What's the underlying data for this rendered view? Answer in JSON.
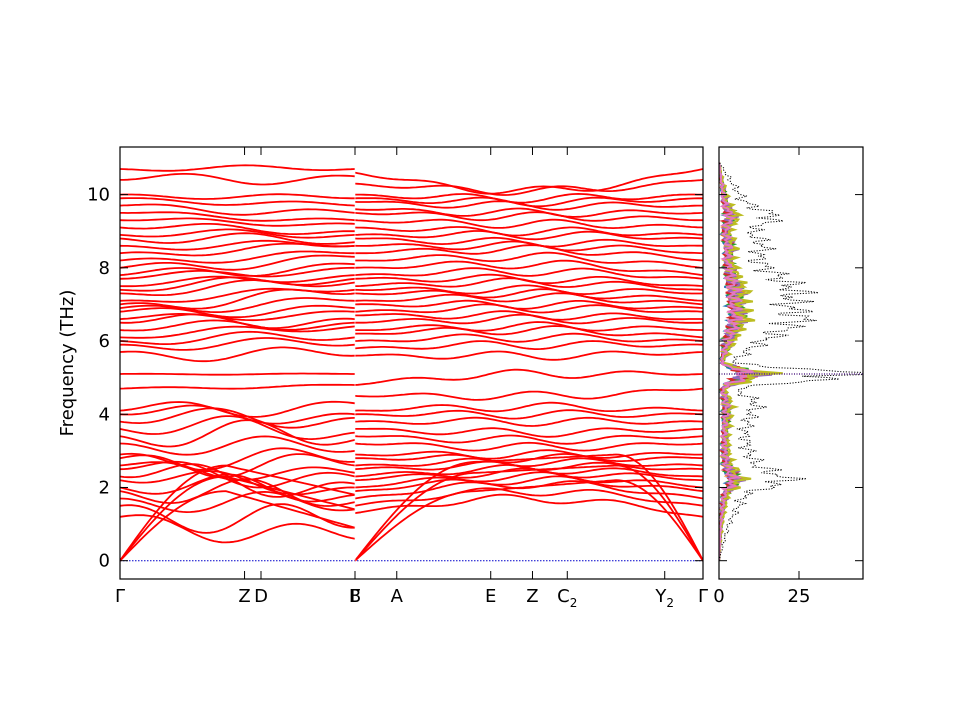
{
  "figure": {
    "ylabel": "Frequency (THz)"
  },
  "chart_data": [
    {
      "type": "line",
      "name": "phonon-band-structure",
      "ylabel": "Frequency (THz)",
      "ylim": [
        -0.5,
        11.3
      ],
      "yticks": [
        0,
        2,
        4,
        6,
        8,
        10
      ],
      "path_segments": [
        {
          "labels": [
            "Γ",
            "Z",
            "D",
            "B"
          ],
          "positions": [
            0,
            0.53,
            0.6,
            1.0
          ]
        },
        {
          "labels": [
            "Γ",
            "A",
            "E",
            "Z",
            "C",
            "Y",
            "Γ"
          ],
          "label_subscripts": [
            "",
            "",
            "",
            "",
            "2",
            "2",
            ""
          ],
          "positions": [
            0,
            0.12,
            0.39,
            0.51,
            0.61,
            0.89,
            1.0
          ]
        }
      ],
      "band_color": "#ff0000",
      "zero_line_color": "#0000cc",
      "segment1": {
        "gamma_optical_start": [
          1.2,
          1.5,
          1.7,
          1.9,
          2.0,
          2.2,
          2.3,
          2.5,
          2.6,
          2.8,
          2.9,
          3.2,
          3.4,
          3.6,
          3.8,
          4.0,
          4.1,
          4.7,
          5.1,
          5.7,
          5.9,
          6.0,
          6.1,
          6.3,
          6.5,
          6.6,
          6.8,
          6.9,
          7.0,
          7.1,
          7.3,
          7.4,
          7.5,
          7.7,
          7.8,
          8.0,
          8.2,
          8.4,
          8.6,
          8.8,
          8.9,
          9.1,
          9.3,
          9.5,
          9.7,
          9.9,
          10.0,
          10.4,
          10.7
        ],
        "b_end": [
          0.6,
          0.9,
          1.4,
          1.6,
          1.8,
          2.0,
          2.1,
          2.3,
          2.4,
          2.6,
          2.7,
          3.0,
          3.3,
          3.5,
          3.9,
          4.0,
          4.3,
          4.8,
          5.1,
          5.6,
          5.9,
          6.1,
          6.4,
          6.5,
          6.6,
          6.8,
          6.9,
          7.1,
          7.3,
          7.4,
          7.6,
          7.7,
          7.8,
          8.0,
          8.1,
          8.3,
          8.4,
          8.6,
          8.6,
          8.7,
          8.9,
          9.0,
          9.2,
          9.3,
          9.5,
          9.7,
          9.9,
          10.5,
          10.7
        ],
        "amplitudes": [
          0.45,
          0.6,
          0.4,
          0.5,
          0.45,
          0.35,
          0.5,
          0.4,
          0.3,
          0.45,
          0.4,
          0.35,
          0.5,
          0.4,
          0.35,
          0.3,
          0.3,
          0.05,
          0.02,
          0.25,
          0.2,
          0.2,
          0.15,
          0.2,
          0.25,
          0.15,
          0.2,
          0.2,
          0.25,
          0.15,
          0.2,
          0.2,
          0.15,
          0.15,
          0.2,
          0.2,
          0.15,
          0.15,
          0.15,
          0.2,
          0.15,
          0.15,
          0.1,
          0.1,
          0.15,
          0.1,
          0.1,
          -0.2,
          0.1
        ]
      },
      "segment2": {
        "gamma_optical_start": [
          1.3,
          1.5,
          1.7,
          1.9,
          2.0,
          2.2,
          2.3,
          2.5,
          2.6,
          2.8,
          2.9,
          3.2,
          3.4,
          3.6,
          3.8,
          4.0,
          4.1,
          4.5,
          4.8,
          5.6,
          5.8,
          6.0,
          6.2,
          6.3,
          6.5,
          6.7,
          6.8,
          7.0,
          7.1,
          7.3,
          7.4,
          7.5,
          7.7,
          7.8,
          8.0,
          8.2,
          8.4,
          8.6,
          8.8,
          8.9,
          9.1,
          9.3,
          9.5,
          9.6,
          9.8,
          9.9,
          10.0,
          10.3,
          10.6
        ],
        "gamma_optical_end": [
          1.2,
          1.5,
          1.7,
          1.9,
          2.0,
          2.2,
          2.3,
          2.5,
          2.6,
          2.8,
          2.9,
          3.2,
          3.4,
          3.6,
          3.8,
          4.0,
          4.1,
          4.7,
          5.1,
          5.7,
          5.9,
          6.0,
          6.1,
          6.3,
          6.5,
          6.6,
          6.8,
          6.9,
          7.0,
          7.1,
          7.3,
          7.4,
          7.5,
          7.7,
          7.8,
          8.0,
          8.2,
          8.4,
          8.6,
          8.8,
          8.9,
          9.1,
          9.3,
          9.5,
          9.7,
          9.9,
          10.0,
          10.4,
          10.7
        ],
        "mid_values": [
          1.7,
          1.9,
          2.1,
          2.2,
          2.3,
          2.4,
          2.5,
          2.6,
          2.7,
          2.8,
          2.9,
          3.1,
          3.3,
          3.5,
          3.8,
          4.0,
          4.2,
          4.5,
          5.1,
          5.6,
          5.9,
          6.1,
          6.3,
          6.4,
          6.6,
          6.7,
          6.9,
          7.0,
          7.2,
          7.3,
          7.4,
          7.6,
          7.7,
          7.9,
          8.1,
          8.3,
          8.5,
          8.6,
          8.7,
          8.9,
          9.0,
          9.2,
          9.4,
          9.5,
          9.7,
          9.8,
          9.9,
          10.1,
          10.1
        ]
      }
    },
    {
      "type": "line",
      "name": "phonon-dos",
      "xlim": [
        0,
        45
      ],
      "xticks": [
        0,
        25
      ],
      "ylim": [
        -0.5,
        11.3
      ],
      "total_dos_color": "#000000",
      "total_dos_style": "dotted",
      "total_dos_peaks": [
        {
          "freq": 0.0,
          "value": 0
        },
        {
          "freq": 1.0,
          "value": 3
        },
        {
          "freq": 1.8,
          "value": 8
        },
        {
          "freq": 2.2,
          "value": 22
        },
        {
          "freq": 2.6,
          "value": 12
        },
        {
          "freq": 3.0,
          "value": 9
        },
        {
          "freq": 3.5,
          "value": 8
        },
        {
          "freq": 4.0,
          "value": 10
        },
        {
          "freq": 4.3,
          "value": 12
        },
        {
          "freq": 4.7,
          "value": 5
        },
        {
          "freq": 5.1,
          "value": 46
        },
        {
          "freq": 5.4,
          "value": 4
        },
        {
          "freq": 5.8,
          "value": 10
        },
        {
          "freq": 6.2,
          "value": 18
        },
        {
          "freq": 6.6,
          "value": 26
        },
        {
          "freq": 7.0,
          "value": 22
        },
        {
          "freq": 7.4,
          "value": 24
        },
        {
          "freq": 7.8,
          "value": 18
        },
        {
          "freq": 8.2,
          "value": 12
        },
        {
          "freq": 8.6,
          "value": 14
        },
        {
          "freq": 9.0,
          "value": 10
        },
        {
          "freq": 9.4,
          "value": 18
        },
        {
          "freq": 9.8,
          "value": 8
        },
        {
          "freq": 10.2,
          "value": 5
        },
        {
          "freq": 10.6,
          "value": 2
        },
        {
          "freq": 10.9,
          "value": 0
        }
      ],
      "projected_dos": [
        {
          "color": "#ff7f0e",
          "scale": 0.25
        },
        {
          "color": "#1f77b4",
          "scale": 0.18
        },
        {
          "color": "#2ca02c",
          "scale": 0.22
        },
        {
          "color": "#d62728",
          "scale": 0.2
        },
        {
          "color": "#9467bd",
          "scale": 0.24
        },
        {
          "color": "#bcbd22",
          "scale": 0.3
        },
        {
          "color": "#e377c2",
          "scale": 0.2
        }
      ]
    }
  ]
}
